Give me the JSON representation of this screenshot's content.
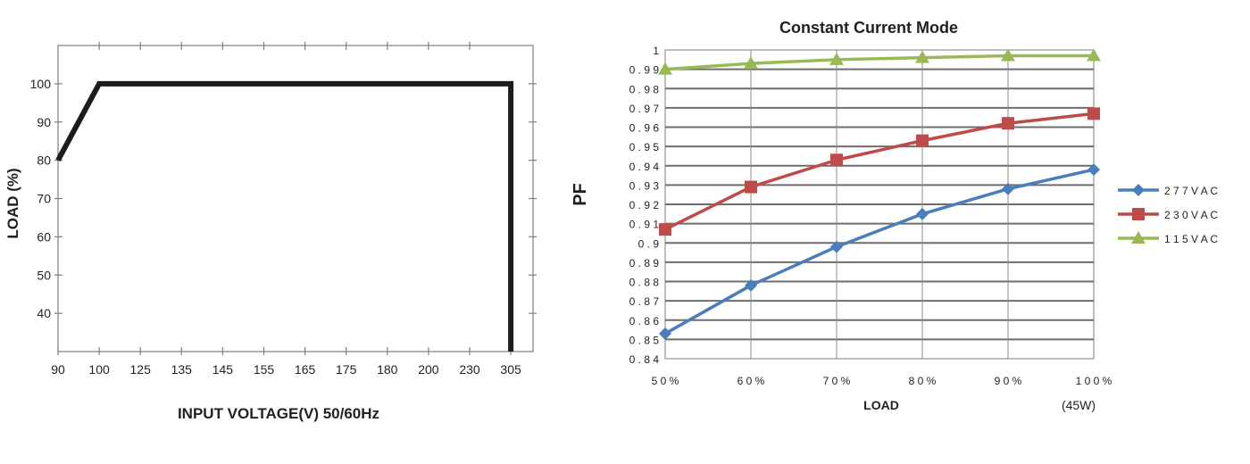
{
  "colors": {
    "derating_line": "#1c1c1c",
    "axis_gray": "#7f7f7f",
    "grid_dark": "#6e6e6e",
    "label_text": "#231f20",
    "series_277": "#4a7ebb",
    "series_230": "#be4b48",
    "series_115": "#98b954"
  },
  "chart_data": [
    {
      "type": "line",
      "title": "",
      "xlabel": "INPUT VOLTAGE(V) 50/60Hz",
      "ylabel": "LOAD (%)",
      "x_tick_labels": [
        "90",
        "100",
        "125",
        "135",
        "145",
        "155",
        "165",
        "175",
        "180",
        "200",
        "230",
        "305"
      ],
      "y_tick_labels": [
        "40",
        "50",
        "60",
        "70",
        "80",
        "90",
        "100"
      ],
      "ylim": [
        30,
        110
      ],
      "grid": false,
      "series": [
        {
          "points": [
            {
              "x": "90",
              "y": 80
            },
            {
              "x": "100",
              "y": 100
            },
            {
              "x": "305",
              "y": 100
            },
            {
              "x": "305",
              "y": 30
            }
          ]
        }
      ]
    },
    {
      "type": "line",
      "title": "Constant Current Mode",
      "xlabel": "LOAD",
      "xlabel_note": "(45W)",
      "ylabel": "PF",
      "categories": [
        "5 0 %",
        "6 0 %",
        "7 0 %",
        "8 0 %",
        "9 0 %",
        "1 0 0 %"
      ],
      "y_tick_labels": [
        "0 . 8 4",
        "0 . 8 5",
        "0 . 8 6",
        "0 . 8 7",
        "0 . 8 8",
        "0 . 8 9",
        "0 . 9",
        "0 . 9 1",
        "0 . 9 2",
        "0 . 9 3",
        "0 . 9 4",
        "0 . 9 5",
        "0 . 9 6",
        "0 . 9 7",
        "0 . 9 8",
        "0 . 9 9",
        "1"
      ],
      "ylim": [
        0.84,
        1.0
      ],
      "grid": true,
      "legend_position": "right",
      "series": [
        {
          "name": "2 7 7 V A C",
          "marker": "diamond",
          "color": "#4a7ebb",
          "values": [
            0.853,
            0.878,
            0.898,
            0.915,
            0.928,
            0.938
          ]
        },
        {
          "name": "2 3 0 V A C",
          "marker": "square",
          "color": "#be4b48",
          "values": [
            0.907,
            0.929,
            0.943,
            0.953,
            0.962,
            0.967
          ]
        },
        {
          "name": "1 1 5 V A C",
          "marker": "triangle",
          "color": "#98b954",
          "values": [
            0.99,
            0.993,
            0.995,
            0.996,
            0.997,
            0.997
          ]
        }
      ]
    }
  ]
}
